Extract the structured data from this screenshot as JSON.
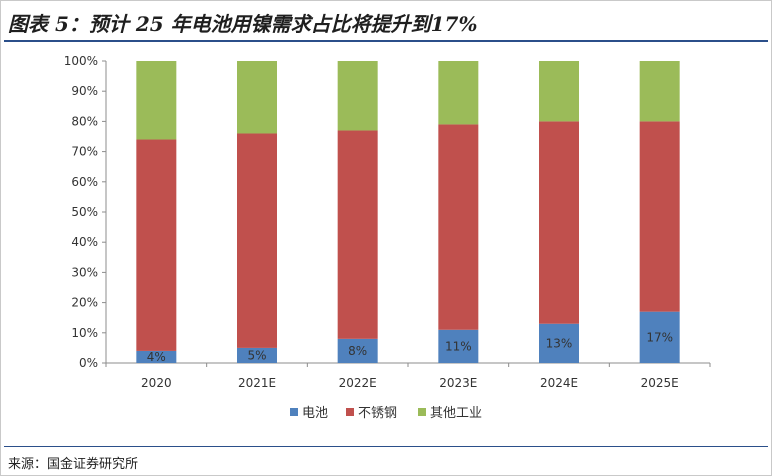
{
  "title": "图表 5：预计 25 年电池用镍需求占比将提升到17%",
  "source": "来源：国金证券研究所",
  "chart_data": {
    "type": "bar",
    "stacked": true,
    "categories": [
      "2020",
      "2021E",
      "2022E",
      "2023E",
      "2024E",
      "2025E"
    ],
    "series": [
      {
        "name": "电池",
        "color": "#4f81bd",
        "values": [
          4,
          5,
          8,
          11,
          13,
          17
        ],
        "labels": [
          "4%",
          "5%",
          "8%",
          "11%",
          "13%",
          "17%"
        ]
      },
      {
        "name": "不锈钢",
        "color": "#c0504d",
        "values": [
          70,
          71,
          69,
          68,
          67,
          63
        ]
      },
      {
        "name": "其他工业",
        "color": "#9bbb59",
        "values": [
          26,
          24,
          23,
          21,
          20,
          20
        ]
      }
    ],
    "y_ticks": [
      "0%",
      "10%",
      "20%",
      "30%",
      "40%",
      "50%",
      "60%",
      "70%",
      "80%",
      "90%",
      "100%"
    ],
    "ylim": [
      0,
      100
    ],
    "grid": false,
    "legend_position": "bottom"
  }
}
